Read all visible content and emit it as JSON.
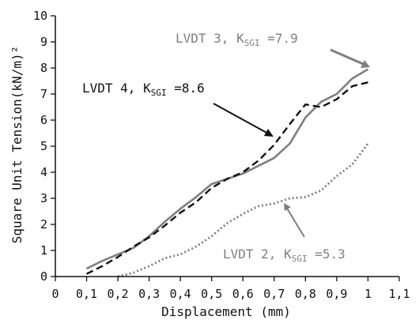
{
  "chart_data": {
    "type": "line",
    "title": "",
    "xlabel": "Displacement (mm)",
    "ylabel": "Square Unit Tension(kN/m)²",
    "xlim": [
      0,
      1.1
    ],
    "ylim": [
      0,
      10
    ],
    "x_ticks": [
      0,
      0.1,
      0.2,
      0.3,
      0.4,
      0.5,
      0.6,
      0.7,
      0.8,
      0.9,
      1,
      1.1
    ],
    "x_tick_labels": [
      "0",
      "0,1",
      "0,2",
      "0,3",
      "0,4",
      "0,5",
      "0,6",
      "0,7",
      "0,8",
      "0,9",
      "1",
      "1,1"
    ],
    "y_ticks": [
      0,
      1,
      2,
      3,
      4,
      5,
      6,
      7,
      8,
      9,
      10
    ],
    "y_tick_labels": [
      "0",
      "1",
      "2",
      "3",
      "4",
      "5",
      "6",
      "7",
      "8",
      "9",
      "10"
    ],
    "grid": false,
    "series": [
      {
        "name": "LVDT 3",
        "style": "solid",
        "color": "#7f7f7f",
        "x": [
          0.1,
          0.15,
          0.2,
          0.25,
          0.3,
          0.35,
          0.4,
          0.45,
          0.5,
          0.55,
          0.6,
          0.65,
          0.7,
          0.75,
          0.8,
          0.85,
          0.9,
          0.95,
          1.0
        ],
        "y": [
          0.3,
          0.6,
          0.85,
          1.1,
          1.55,
          2.1,
          2.6,
          3.05,
          3.55,
          3.75,
          3.95,
          4.25,
          4.55,
          5.1,
          6.1,
          6.7,
          7.0,
          7.6,
          7.95
        ]
      },
      {
        "name": "LVDT 4",
        "style": "dashed",
        "color": "#111111",
        "x": [
          0.1,
          0.15,
          0.2,
          0.25,
          0.3,
          0.35,
          0.4,
          0.45,
          0.5,
          0.55,
          0.6,
          0.65,
          0.7,
          0.75,
          0.8,
          0.85,
          0.9,
          0.95,
          1.0
        ],
        "y": [
          0.1,
          0.4,
          0.75,
          1.15,
          1.5,
          1.95,
          2.45,
          2.85,
          3.4,
          3.75,
          4.0,
          4.45,
          5.05,
          5.85,
          6.6,
          6.5,
          6.8,
          7.3,
          7.45
        ]
      },
      {
        "name": "LVDT 2",
        "style": "dotted",
        "color": "#7f7f7f",
        "x": [
          0.2,
          0.25,
          0.3,
          0.35,
          0.4,
          0.45,
          0.5,
          0.55,
          0.6,
          0.65,
          0.7,
          0.75,
          0.8,
          0.85,
          0.9,
          0.95,
          1.0
        ],
        "y": [
          0.0,
          0.15,
          0.4,
          0.7,
          0.85,
          1.15,
          1.55,
          2.05,
          2.4,
          2.7,
          2.8,
          3.0,
          3.05,
          3.3,
          3.85,
          4.3,
          5.1
        ]
      }
    ],
    "annotations": [
      {
        "series": "LVDT 3",
        "prefix": "LVDT 3, K",
        "sub": "SGI",
        "suffix": " =7.9",
        "color": "#7f7f7f"
      },
      {
        "series": "LVDT 4",
        "prefix": "LVDT 4, K",
        "sub": "SGI",
        "suffix": " =8.6",
        "color": "#111111"
      },
      {
        "series": "LVDT 2",
        "prefix": "LVDT 2, K",
        "sub": "SGI",
        "suffix": " =5.3",
        "color": "#7f7f7f"
      }
    ]
  }
}
